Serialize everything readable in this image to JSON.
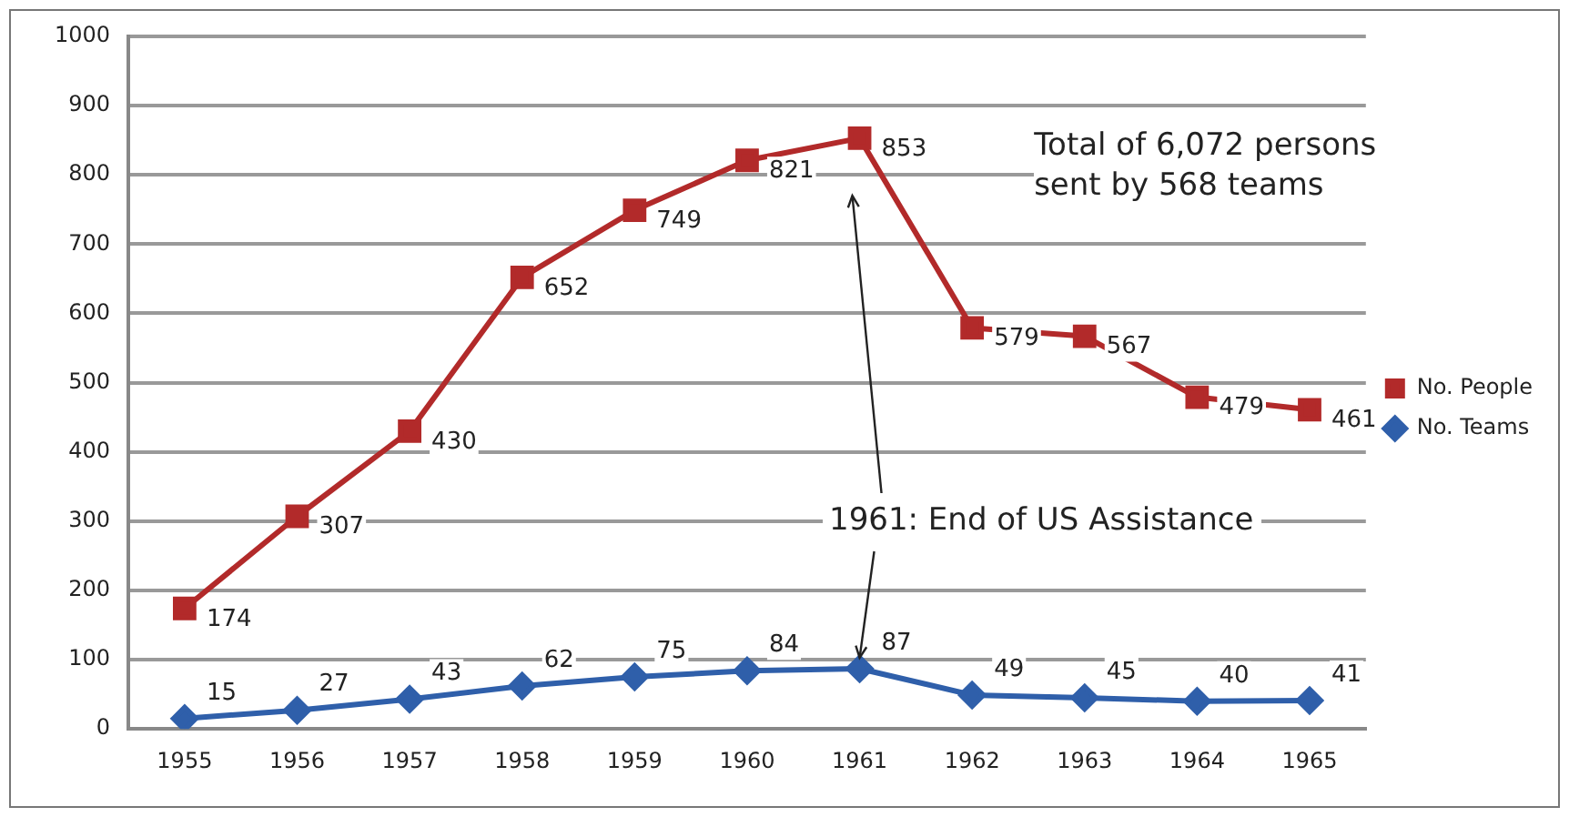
{
  "chart_data": {
    "type": "line",
    "categories": [
      "1955",
      "1956",
      "1957",
      "1958",
      "1959",
      "1960",
      "1961",
      "1962",
      "1963",
      "1964",
      "1965"
    ],
    "series": [
      {
        "name": "No. People",
        "color": "#b22a2a",
        "marker": "square",
        "values": [
          174,
          307,
          430,
          652,
          749,
          821,
          853,
          579,
          567,
          479,
          461
        ]
      },
      {
        "name": "No. Teams",
        "color": "#2f5faa",
        "marker": "diamond",
        "values": [
          15,
          27,
          43,
          62,
          75,
          84,
          87,
          49,
          45,
          40,
          41
        ]
      }
    ],
    "ylim": [
      0,
      1000
    ],
    "yticks": [
      0,
      100,
      200,
      300,
      400,
      500,
      600,
      700,
      800,
      900,
      1000
    ],
    "grid": "y",
    "legend": "right",
    "data_labels": true,
    "line_style": "solid",
    "annotations": [
      "Total of 6,072 persons sent by 568 teams",
      {
        "text": "1961: End of US Assistance",
        "x": "1961",
        "y": 87
      }
    ]
  }
}
